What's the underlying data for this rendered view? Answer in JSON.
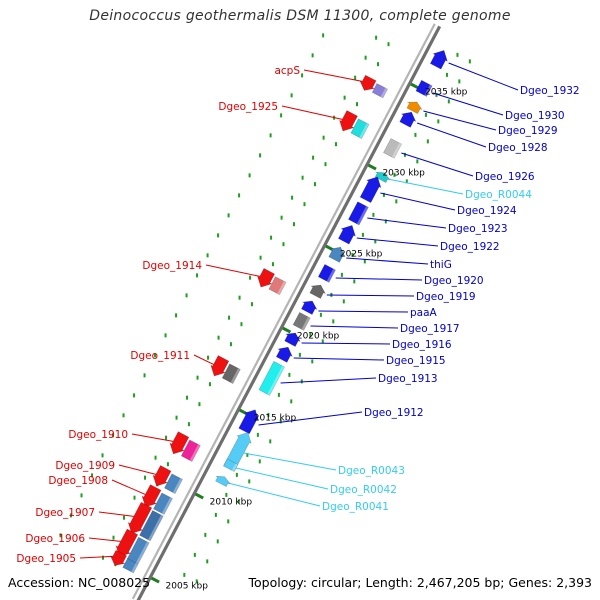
{
  "title": "Deinococcus geothermalis DSM 11300, complete genome",
  "footer": {
    "accession_label": "Accession:",
    "accession": "NC_008025",
    "topology_label": "Topology:",
    "topology": "circular;",
    "length_label": "Length:",
    "length": "2,467,205 bp;",
    "genes_label": "Genes:",
    "genes": "2,393"
  },
  "colors": {
    "backbone": "#8c8c8c",
    "tick_dot": "#1e9e1e",
    "forward_label": "#e00000",
    "reverse_label": "#0000cc",
    "rna_label": "#33ccee"
  },
  "scale_labels": [
    {
      "text": "2035 kbp",
      "kbp": 2035
    },
    {
      "text": "2030 kbp",
      "kbp": 2030
    },
    {
      "text": "2025 kbp",
      "kbp": 2025
    },
    {
      "text": "2020 kbp",
      "kbp": 2020
    },
    {
      "text": "2015 kbp",
      "kbp": 2015
    },
    {
      "text": "2010 kbp",
      "kbp": 2010
    },
    {
      "text": "2005 kbp",
      "kbp": 2005
    }
  ],
  "genes_left": [
    {
      "label": "acpS",
      "color": "#8a7fd6"
    },
    {
      "label": "Dgeo_1925",
      "color": "#22dddd"
    },
    {
      "label": "Dgeo_1914",
      "color": "#e07a7a"
    },
    {
      "label": "Dgeo_1911",
      "color": "#666666"
    },
    {
      "label": "Dgeo_1910",
      "color": "#ee2299"
    },
    {
      "label": "Dgeo_1909",
      "color": "#4a86c0"
    },
    {
      "label": "Dgeo_1908",
      "color": "#4a86c0"
    },
    {
      "label": "Dgeo_1907",
      "color": "#3d6fa8"
    },
    {
      "label": "Dgeo_1906",
      "color": "#4a86c0"
    },
    {
      "label": "Dgeo_1905",
      "color": "#4a86c0"
    }
  ],
  "genes_right": [
    {
      "label": "Dgeo_1932",
      "color": "#1a1ae6",
      "type": "gene"
    },
    {
      "label": "Dgeo_1930",
      "color": "#1a1ae6",
      "type": "gene"
    },
    {
      "label": "Dgeo_1929",
      "color": "#f08c00",
      "type": "gene"
    },
    {
      "label": "Dgeo_1928",
      "color": "#1a1ae6",
      "type": "gene"
    },
    {
      "label": "Dgeo_1926",
      "color": "#bbbbbb",
      "type": "gene"
    },
    {
      "label": "Dgeo_R0044",
      "color": "#22cccc",
      "type": "rna"
    },
    {
      "label": "Dgeo_1924",
      "color": "#1a1ae6",
      "type": "gene"
    },
    {
      "label": "Dgeo_1923",
      "color": "#1a1ae6",
      "type": "gene"
    },
    {
      "label": "Dgeo_1922",
      "color": "#1a1ae6",
      "type": "gene"
    },
    {
      "label": "thiG",
      "color": "#4a86c0",
      "type": "gene"
    },
    {
      "label": "Dgeo_1920",
      "color": "#1a1ae6",
      "type": "gene"
    },
    {
      "label": "Dgeo_1919",
      "color": "#666666",
      "type": "gene"
    },
    {
      "label": "paaA",
      "color": "#1a1ae6",
      "type": "gene"
    },
    {
      "label": "Dgeo_1917",
      "color": "#777777",
      "type": "gene"
    },
    {
      "label": "Dgeo_1916",
      "color": "#1a1ae6",
      "type": "gene"
    },
    {
      "label": "Dgeo_1915",
      "color": "#1a1ae6",
      "type": "gene"
    },
    {
      "label": "Dgeo_1913",
      "color": "#22eeee",
      "type": "gene"
    },
    {
      "label": "Dgeo_1912",
      "color": "#1a1ae6",
      "type": "gene"
    },
    {
      "label": "Dgeo_R0043",
      "color": "#55ccf5",
      "type": "rna"
    },
    {
      "label": "Dgeo_R0042",
      "color": "#55ccf5",
      "type": "rna"
    },
    {
      "label": "Dgeo_R0041",
      "color": "#55ccf5",
      "type": "rna"
    }
  ]
}
